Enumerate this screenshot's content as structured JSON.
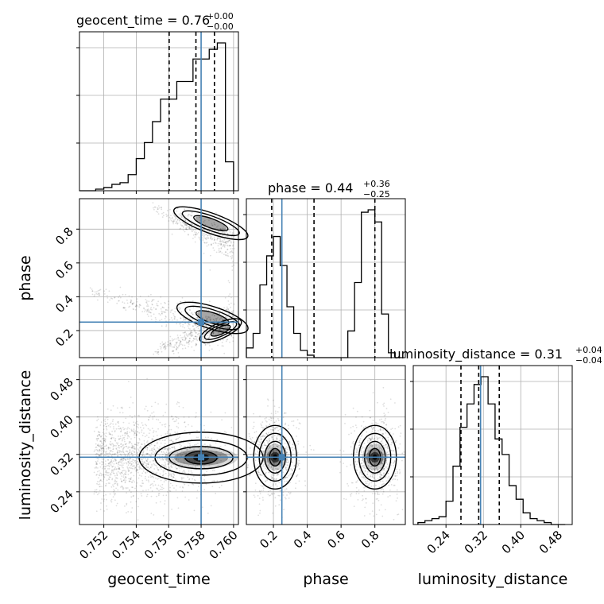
{
  "chart_data": {
    "type": "corner",
    "parameters": [
      "geocent_time",
      "phase",
      "luminosity_distance"
    ],
    "colors": {
      "truth": "#4682b4",
      "hist": "#000000",
      "grid": "#b0b0b0",
      "quantile": "#000000",
      "scatter": "#000000"
    },
    "grid": true,
    "panels": {
      "geocent_time_hist": {
        "title": {
          "name": "geocent_time",
          "value": "0.76",
          "upper": "+0.00",
          "lower": "−0.00"
        },
        "xlim": [
          0.7505,
          0.7603
        ],
        "quantiles": [
          0.75603,
          0.75768,
          0.75882
        ],
        "truth": 0.758,
        "bin_edges": [
          0.7505,
          0.751,
          0.7515,
          0.752,
          0.7525,
          0.753,
          0.7535,
          0.754,
          0.7545,
          0.755,
          0.7555,
          0.756,
          0.7565,
          0.757,
          0.7575,
          0.758,
          0.7585,
          0.759,
          0.7595,
          0.76
        ],
        "counts": [
          0,
          0,
          1,
          2,
          4,
          5,
          10,
          20,
          30,
          43,
          57,
          57,
          68,
          68,
          82,
          82,
          88,
          92,
          18
        ]
      },
      "phase_hist": {
        "title": {
          "name": "phase",
          "value": "0.44",
          "upper": "+0.36",
          "lower": "−0.25"
        },
        "xlim": [
          0.04,
          0.98
        ],
        "quantiles": [
          0.19,
          0.44,
          0.8
        ],
        "truth": 0.25,
        "bin_edges": [
          0.04,
          0.08,
          0.12,
          0.16,
          0.2,
          0.24,
          0.28,
          0.32,
          0.36,
          0.4,
          0.44,
          0.48,
          0.52,
          0.56,
          0.6,
          0.64,
          0.68,
          0.72,
          0.76,
          0.8,
          0.84,
          0.88,
          0.92,
          0.96
        ],
        "counts": [
          4,
          10,
          30,
          42,
          50,
          38,
          21,
          10,
          3,
          1,
          0,
          0,
          0,
          0,
          0,
          11,
          31,
          60,
          61,
          56,
          18,
          2,
          0
        ]
      },
      "luminosity_distance_hist": {
        "title": {
          "name": "luminosity_distance",
          "value": "0.31",
          "upper": "+0.04",
          "lower": "−0.04"
        },
        "xlim": [
          0.17,
          0.51
        ],
        "quantiles": [
          0.272,
          0.31,
          0.354
        ],
        "truth": 0.314,
        "bin_edges": [
          0.18,
          0.195,
          0.21,
          0.225,
          0.24,
          0.255,
          0.27,
          0.285,
          0.3,
          0.315,
          0.33,
          0.345,
          0.36,
          0.375,
          0.39,
          0.405,
          0.42,
          0.435,
          0.45,
          0.465,
          0.48,
          0.495
        ],
        "counts": [
          1,
          2,
          3,
          4,
          12,
          30,
          50,
          62,
          72,
          76,
          62,
          44,
          36,
          20,
          13,
          6,
          3,
          2,
          1,
          0,
          0
        ]
      },
      "phase_vs_geocent_time": {
        "x": "geocent_time",
        "y": "phase",
        "xlim": [
          0.7505,
          0.7603
        ],
        "ylim": [
          0.04,
          0.98
        ],
        "truth": [
          0.758,
          0.25
        ],
        "modes": [
          {
            "x_start": 0.7548,
            "y_start": 0.94,
            "x_end": 0.76,
            "y_end": 0.7
          },
          {
            "x_start": 0.751,
            "y_start": 0.44,
            "x_end": 0.76,
            "y_end": 0.2
          },
          {
            "x_start": 0.7548,
            "y_start": 0.06,
            "x_end": 0.76,
            "y_end": 0.27
          }
        ]
      },
      "luminosity_distance_vs_geocent_time": {
        "x": "geocent_time",
        "y": "luminosity_distance",
        "xlim": [
          0.7505,
          0.7603
        ],
        "ylim": [
          0.17,
          0.51
        ],
        "truth": [
          0.758,
          0.314
        ],
        "center": [
          0.758,
          0.313
        ]
      },
      "luminosity_distance_vs_phase": {
        "x": "phase",
        "y": "luminosity_distance",
        "xlim": [
          0.04,
          0.98
        ],
        "ylim": [
          0.17,
          0.51
        ],
        "truth": [
          0.25,
          0.314
        ],
        "centers": [
          [
            0.21,
            0.314
          ],
          [
            0.8,
            0.314
          ]
        ]
      }
    },
    "ticks": {
      "geocent_time": [
        "0.752",
        "0.754",
        "0.756",
        "0.758",
        "0.760"
      ],
      "phase": [
        "0.2",
        "0.4",
        "0.6",
        "0.8"
      ],
      "luminosity_distance": [
        "0.24",
        "0.32",
        "0.40",
        "0.48"
      ]
    },
    "axis_labels": {
      "geocent_time": "geocent_time",
      "phase": "phase",
      "luminosity_distance": "luminosity_distance"
    }
  }
}
